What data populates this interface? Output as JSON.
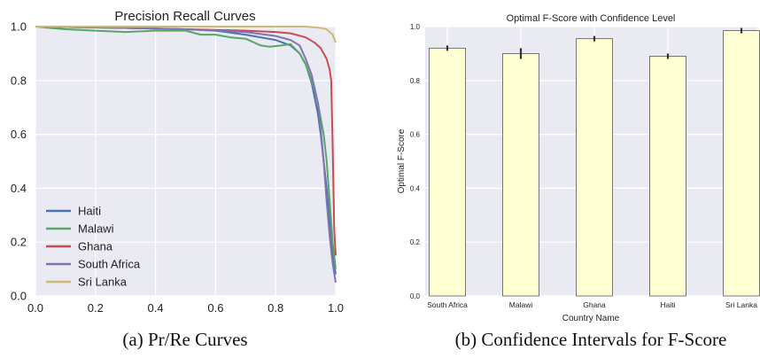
{
  "chart_data": [
    {
      "type": "line",
      "title": "Precision Recall Curves",
      "caption": "(a) Pr/Re Curves",
      "xlim": [
        0.0,
        1.0
      ],
      "ylim": [
        0.0,
        1.0
      ],
      "x_ticks": [
        "0.0",
        "0.2",
        "0.4",
        "0.6",
        "0.8",
        "1.0"
      ],
      "y_ticks": [
        "0.0",
        "0.2",
        "0.4",
        "0.6",
        "0.8",
        "1.0"
      ],
      "grid": true,
      "legend_position": "lower-left",
      "series": [
        {
          "name": "Haiti",
          "color": "#4c72b0",
          "x": [
            0.0,
            0.3,
            0.5,
            0.6,
            0.7,
            0.8,
            0.85,
            0.88,
            0.9,
            0.92,
            0.94,
            0.95,
            0.96,
            0.97,
            0.98,
            0.99,
            1.0
          ],
          "y": [
            1.0,
            0.995,
            0.99,
            0.985,
            0.97,
            0.95,
            0.93,
            0.9,
            0.86,
            0.79,
            0.68,
            0.6,
            0.5,
            0.4,
            0.28,
            0.15,
            0.08
          ]
        },
        {
          "name": "Malawi",
          "color": "#55a868",
          "x": [
            0.0,
            0.1,
            0.2,
            0.3,
            0.4,
            0.5,
            0.55,
            0.6,
            0.65,
            0.7,
            0.75,
            0.78,
            0.82,
            0.85,
            0.88,
            0.9,
            0.92,
            0.94,
            0.96,
            0.97,
            0.98,
            0.99,
            1.0
          ],
          "y": [
            1.0,
            0.99,
            0.985,
            0.98,
            0.985,
            0.985,
            0.97,
            0.97,
            0.96,
            0.955,
            0.93,
            0.925,
            0.93,
            0.935,
            0.9,
            0.86,
            0.8,
            0.72,
            0.6,
            0.5,
            0.35,
            0.2,
            0.1
          ]
        },
        {
          "name": "Ghana",
          "color": "#c44e52",
          "x": [
            0.0,
            0.3,
            0.5,
            0.7,
            0.8,
            0.85,
            0.9,
            0.93,
            0.95,
            0.97,
            0.98,
            0.985,
            0.99,
            0.995,
            1.0
          ],
          "y": [
            1.0,
            0.995,
            0.99,
            0.985,
            0.98,
            0.975,
            0.96,
            0.94,
            0.92,
            0.88,
            0.84,
            0.8,
            0.55,
            0.25,
            0.15
          ]
        },
        {
          "name": "South Africa",
          "color": "#8172b2",
          "x": [
            0.0,
            0.3,
            0.5,
            0.6,
            0.7,
            0.8,
            0.85,
            0.88,
            0.9,
            0.92,
            0.94,
            0.95,
            0.96,
            0.97,
            0.98,
            0.99,
            1.0
          ],
          "y": [
            1.0,
            0.995,
            0.99,
            0.985,
            0.98,
            0.965,
            0.95,
            0.93,
            0.88,
            0.82,
            0.72,
            0.62,
            0.5,
            0.35,
            0.22,
            0.12,
            0.05
          ]
        },
        {
          "name": "Sri Lanka",
          "color": "#ccb974",
          "x": [
            0.0,
            0.5,
            0.8,
            0.9,
            0.95,
            0.97,
            0.98,
            0.99,
            1.0
          ],
          "y": [
            1.0,
            1.0,
            1.0,
            1.0,
            0.995,
            0.99,
            0.98,
            0.97,
            0.94
          ]
        }
      ]
    },
    {
      "type": "bar",
      "title": "Optimal F-Score with Confidence Level",
      "caption": "(b) Confidence Intervals for F-Score",
      "xlabel": "Country Name",
      "ylabel": "Optimal F-Score",
      "ylim": [
        0.0,
        1.0
      ],
      "y_ticks": [
        "0.0",
        "0.2",
        "0.4",
        "0.6",
        "0.8",
        "1.0"
      ],
      "grid": true,
      "bar_color": "#ffffd4",
      "categories": [
        "South Africa",
        "Malawi",
        "Ghana",
        "Haiti",
        "Sri Lanka"
      ],
      "values": [
        0.92,
        0.9,
        0.955,
        0.89,
        0.985
      ],
      "error_low": [
        0.91,
        0.88,
        0.945,
        0.88,
        0.975
      ],
      "error_high": [
        0.93,
        0.92,
        0.965,
        0.9,
        0.995
      ]
    }
  ]
}
